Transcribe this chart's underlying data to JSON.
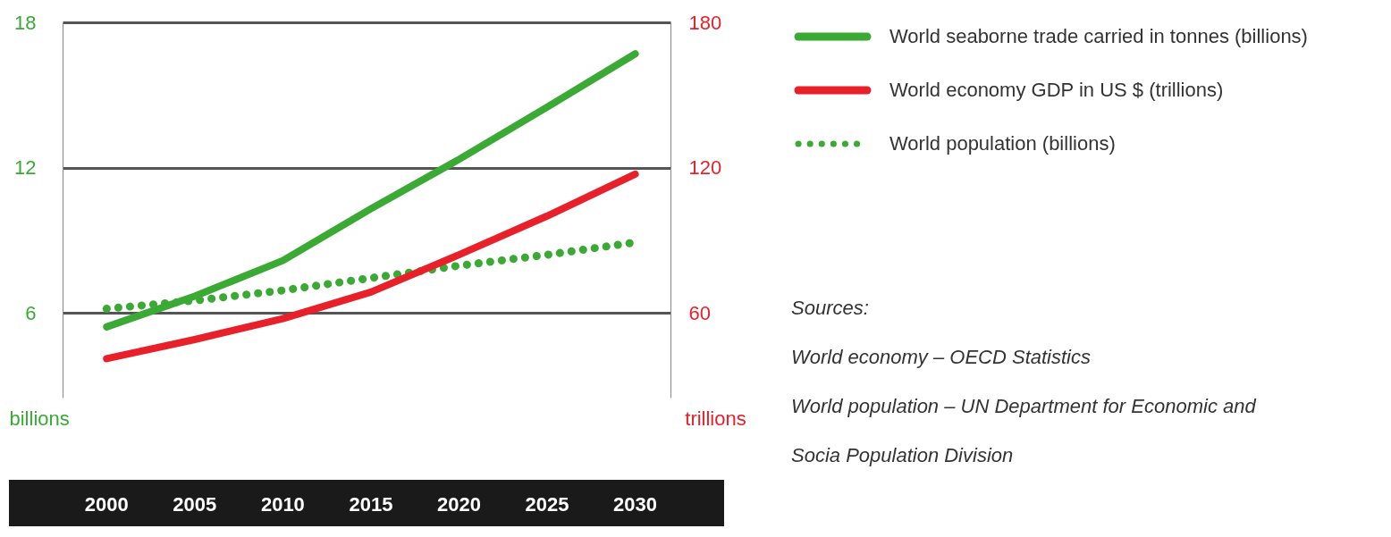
{
  "chart_data": {
    "type": "line",
    "x": [
      2000,
      2005,
      2010,
      2015,
      2020,
      2025,
      2030
    ],
    "xlim": [
      1997.5,
      2032
    ],
    "xticks": [
      2000,
      2005,
      2010,
      2015,
      2020,
      2025,
      2030
    ],
    "ylim": [
      2.5,
      18
    ],
    "yticks": [
      6,
      12,
      18
    ],
    "y2lim": [
      25,
      180
    ],
    "y2ticks": [
      60,
      120,
      180
    ],
    "ylabel": "billions",
    "y2label": "trillions",
    "grid": "y",
    "legend": "top right",
    "series": [
      {
        "name": "World seaborne trade carried in tonnes (billions)",
        "color": "#3aaa35",
        "line_style": "solid",
        "values": [
          5.42,
          6.69,
          8.16,
          10.3,
          12.34,
          14.5,
          16.7
        ]
      },
      {
        "name": "World economy GDP in US $ (trillions)",
        "color": "#e8202a",
        "line_style": "solid",
        "axis": "y2",
        "values": [
          41.1,
          49,
          57.6,
          68.6,
          84,
          100,
          117.3
        ]
      },
      {
        "name": "World population (billions)",
        "color": "#3aaa35",
        "line_style": "dotted",
        "values": [
          6.17,
          6.51,
          6.93,
          7.44,
          7.95,
          8.4,
          8.91
        ]
      }
    ],
    "annotations": [
      "Sources:",
      "World economy – OECD Statistics",
      "World population – UN Department for Economic and Socia Population Division"
    ]
  }
}
